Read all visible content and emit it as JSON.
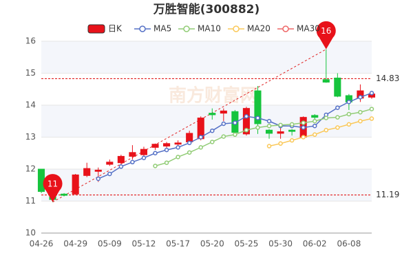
{
  "chart_data": {
    "type": "candlestick",
    "title": "万胜智能(300882)",
    "categories": [
      "04-26",
      null,
      null,
      "04-29",
      null,
      null,
      "05-09",
      null,
      null,
      "05-12",
      null,
      null,
      "05-17",
      null,
      null,
      "05-20",
      null,
      null,
      "05-25",
      null,
      null,
      "05-30",
      null,
      null,
      "06-02",
      null,
      null,
      "06-08",
      null,
      null
    ],
    "candle_name": "日K",
    "up_color": "#e8121a",
    "down_color": "#16c43d",
    "open": [
      12.0,
      11.2,
      11.22,
      11.22,
      11.8,
      11.93,
      12.15,
      12.2,
      12.4,
      12.45,
      12.68,
      12.72,
      12.78,
      12.85,
      12.95,
      13.75,
      13.75,
      13.8,
      13.1,
      14.45,
      13.22,
      13.12,
      13.22,
      13.0,
      13.68,
      14.8,
      14.85,
      14.3,
      14.22,
      14.25
    ],
    "high": [
      12.0,
      11.25,
      11.25,
      11.85,
      12.2,
      12.05,
      12.3,
      12.45,
      12.75,
      12.7,
      12.8,
      12.85,
      12.9,
      13.2,
      13.65,
      13.9,
      13.9,
      13.85,
      13.95,
      14.6,
      13.25,
      13.3,
      13.25,
      13.65,
      13.72,
      15.75,
      15.0,
      14.35,
      14.65,
      14.4
    ],
    "low": [
      11.25,
      10.97,
      11.15,
      11.2,
      11.75,
      11.6,
      12.1,
      12.15,
      12.3,
      12.3,
      12.6,
      12.6,
      12.65,
      12.8,
      12.9,
      13.55,
      13.5,
      13.1,
      13.05,
      13.1,
      12.95,
      12.95,
      13.05,
      12.95,
      13.45,
      14.7,
      14.25,
      13.85,
      14.1,
      14.2
    ],
    "close": [
      11.3,
      11.05,
      11.18,
      11.82,
      12.02,
      11.97,
      12.22,
      12.4,
      12.52,
      12.62,
      12.78,
      12.8,
      12.82,
      13.12,
      13.6,
      13.7,
      13.82,
      13.15,
      13.9,
      13.42,
      13.12,
      13.17,
      13.18,
      13.62,
      13.62,
      14.72,
      14.28,
      14.1,
      14.45,
      14.35
    ],
    "series": [
      {
        "name": "MA5",
        "color": "#5470c6",
        "values": [
          null,
          null,
          null,
          null,
          null,
          11.7,
          11.85,
          12.08,
          12.22,
          12.35,
          12.5,
          12.6,
          12.68,
          12.82,
          13.0,
          13.2,
          13.42,
          13.45,
          13.65,
          13.6,
          13.5,
          13.35,
          13.35,
          13.3,
          13.35,
          13.7,
          13.92,
          14.1,
          14.25,
          14.38
        ]
      },
      {
        "name": "MA10",
        "color": "#91cc75",
        "values": [
          null,
          null,
          null,
          null,
          null,
          null,
          null,
          null,
          null,
          null,
          12.1,
          12.2,
          12.38,
          12.52,
          12.68,
          12.85,
          13.02,
          13.08,
          13.22,
          13.3,
          13.35,
          13.38,
          13.4,
          13.45,
          13.5,
          13.6,
          13.62,
          13.72,
          13.78,
          13.88
        ]
      },
      {
        "name": "MA20",
        "color": "#fac858",
        "values": [
          null,
          null,
          null,
          null,
          null,
          null,
          null,
          null,
          null,
          null,
          null,
          null,
          null,
          null,
          null,
          null,
          null,
          null,
          null,
          null,
          12.72,
          12.8,
          12.9,
          13.0,
          13.08,
          13.22,
          13.3,
          13.4,
          13.5,
          13.58
        ]
      },
      {
        "name": "MA30",
        "color": "#ee6666",
        "values": [
          null,
          null,
          null,
          null,
          null,
          null,
          null,
          null,
          null,
          null,
          null,
          null,
          null,
          null,
          null,
          null,
          null,
          null,
          null,
          null,
          null,
          null,
          null,
          null,
          null,
          null,
          null,
          null,
          null,
          null
        ]
      }
    ],
    "ylim": [
      10,
      16
    ],
    "yticks": [
      10,
      11,
      12,
      13,
      14,
      15,
      16
    ],
    "ref_lines": [
      14.83,
      11.19
    ],
    "extremes": [
      {
        "index": 25,
        "value": 15.75,
        "label": "16"
      },
      {
        "index": 1,
        "value": 10.97,
        "label": "11"
      }
    ],
    "watermark": "南方财富网"
  }
}
